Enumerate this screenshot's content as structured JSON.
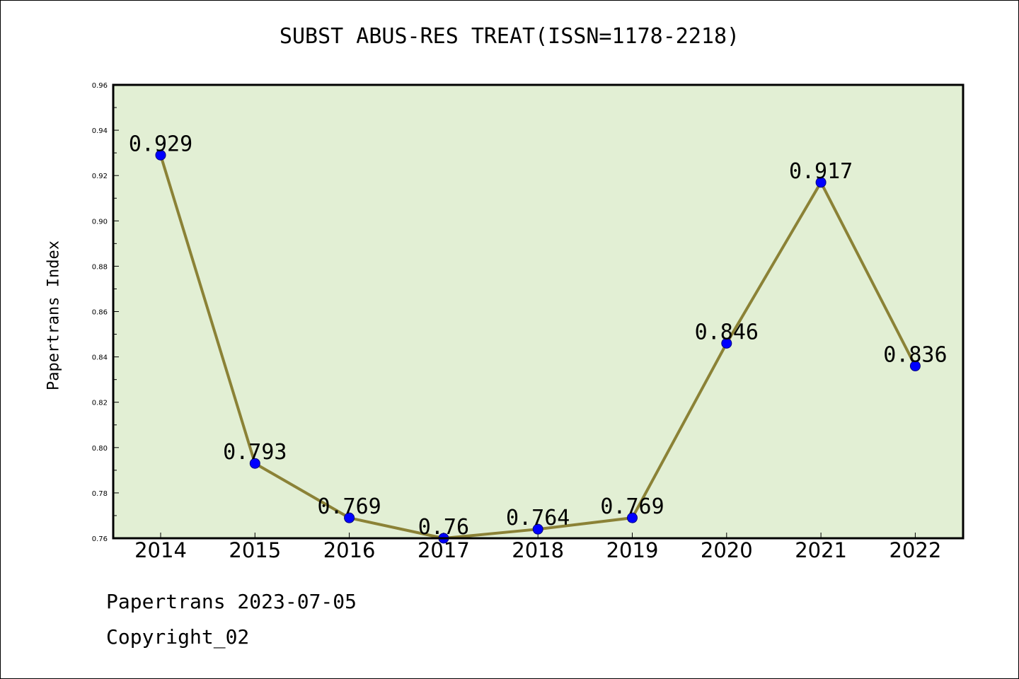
{
  "chart_data": {
    "type": "line",
    "title": "SUBST ABUS-RES TREAT(ISSN=1178-2218)",
    "xlabel": "",
    "ylabel": "Papertrans Index",
    "categories": [
      "2014",
      "2015",
      "2016",
      "2017",
      "2018",
      "2019",
      "2020",
      "2021",
      "2022"
    ],
    "series": [
      {
        "values": [
          0.929,
          0.793,
          0.769,
          0.76,
          0.764,
          0.769,
          0.846,
          0.917,
          0.836
        ],
        "data_labels": [
          "0.929",
          "0.793",
          "0.769",
          "0.76",
          "0.764",
          "0.769",
          "0.846",
          "0.917",
          "0.836"
        ]
      }
    ],
    "ylim": [
      0.76,
      0.96
    ],
    "y_ticks": [
      "0.76",
      "0.78",
      "0.80",
      "0.82",
      "0.84",
      "0.86",
      "0.88",
      "0.90",
      "0.92",
      "0.94",
      "0.96"
    ],
    "grid": false,
    "colors": {
      "plot_background": "#e2efd4",
      "line": "#8b8236",
      "marker_fill": "#0000ff",
      "marker_edge": "#000080"
    }
  },
  "footer": {
    "line1": "Papertrans 2023-07-05",
    "line2": "Copyright_02"
  }
}
